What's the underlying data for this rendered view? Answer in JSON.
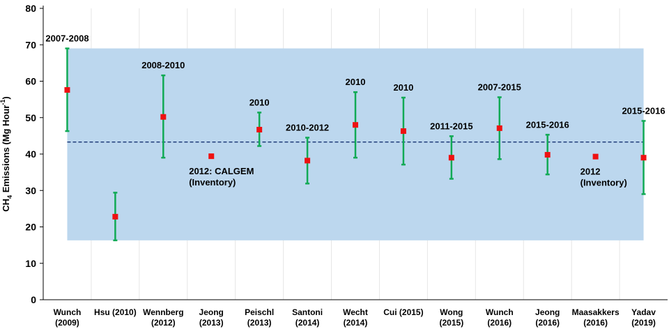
{
  "chart_data": {
    "type": "scatter",
    "ylabel": "CH4 Emissions (Mg Hour-1)",
    "ylabel_parts": {
      "a": "CH",
      "sub": "4",
      "b": " Emissions (Mg Hour",
      "sup": "-1",
      "c": ")"
    },
    "ylim": [
      0,
      80
    ],
    "yticks": [
      0,
      10,
      20,
      30,
      40,
      50,
      60,
      70,
      80
    ],
    "reference_line": 43.3,
    "shaded_band": [
      16.3,
      69
    ],
    "colors": {
      "band": "#bcd7ee",
      "marker": "#ee1111",
      "errorbar": "#11aa55",
      "refline": "#1f3d7a"
    },
    "points": [
      {
        "label": [
          "Wunch",
          "(2009)"
        ],
        "value": 57.6,
        "low": 46.3,
        "high": 69,
        "annotation": [
          "2007-2008"
        ]
      },
      {
        "label": [
          "Hsu (2010)"
        ],
        "value": 22.8,
        "low": 16.3,
        "high": 29.4,
        "annotation": []
      },
      {
        "label": [
          "Wennberg",
          "(2012)"
        ],
        "value": 50.2,
        "low": 39,
        "high": 61.6,
        "annotation": [
          "2008-2010"
        ]
      },
      {
        "label": [
          "Jeong",
          "(2013)"
        ],
        "value": 39.4,
        "low": null,
        "high": null,
        "annotation": [
          "2012: CALGEM",
          "(Inventory)"
        ]
      },
      {
        "label": [
          "Peischl",
          "(2013)"
        ],
        "value": 46.7,
        "low": 42.2,
        "high": 51.4,
        "annotation": [
          "2010"
        ]
      },
      {
        "label": [
          "Santoni",
          "(2014)"
        ],
        "value": 38.2,
        "low": 31.9,
        "high": 44.5,
        "annotation": [
          "2010-2012"
        ]
      },
      {
        "label": [
          "Wecht",
          "(2014)"
        ],
        "value": 48,
        "low": 39,
        "high": 57,
        "annotation": [
          "2010"
        ]
      },
      {
        "label": [
          "Cui (2015)"
        ],
        "value": 46.3,
        "low": 37.1,
        "high": 55.5,
        "annotation": [
          "2010"
        ]
      },
      {
        "label": [
          "Wong",
          "(2015)"
        ],
        "value": 39,
        "low": 33.2,
        "high": 44.9,
        "annotation": [
          "2011-2015"
        ]
      },
      {
        "label": [
          "Wunch",
          "(2016)"
        ],
        "value": 47.1,
        "low": 38.6,
        "high": 55.6,
        "annotation": [
          "2007-2015"
        ]
      },
      {
        "label": [
          "Jeong",
          "(2016)"
        ],
        "value": 39.8,
        "low": 34.4,
        "high": 45.3,
        "annotation": [
          "2015-2016"
        ]
      },
      {
        "label": [
          "Maasakkers",
          "(2016)"
        ],
        "value": 39.3,
        "low": null,
        "high": null,
        "annotation": [
          "2012",
          "(Inventory)"
        ]
      },
      {
        "label": [
          "Yadav",
          "(2019)"
        ],
        "value": 39,
        "low": 29,
        "high": 49.1,
        "annotation": [
          "2015-2016"
        ]
      }
    ]
  }
}
